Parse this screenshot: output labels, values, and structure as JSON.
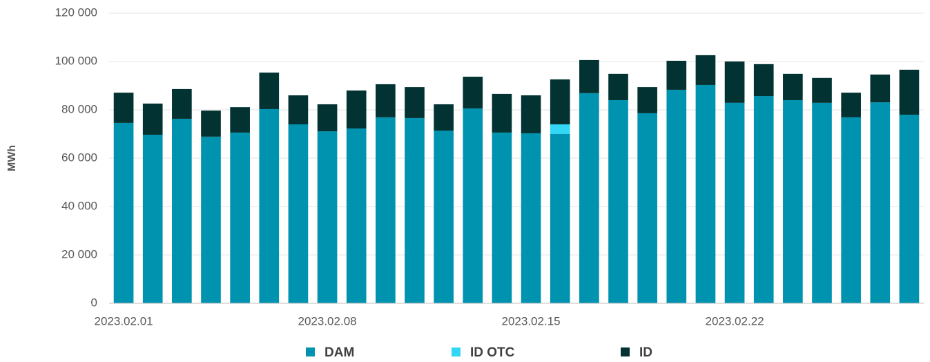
{
  "chart_data": {
    "type": "stacked_bar",
    "y_label": "MWh",
    "categories": [
      "2023.02.01",
      null,
      null,
      null,
      null,
      null,
      null,
      "2023.02.08",
      null,
      null,
      null,
      null,
      null,
      null,
      "2023.02.15",
      null,
      null,
      null,
      null,
      null,
      null,
      "2023.02.22",
      null,
      null,
      null,
      null,
      null,
      null
    ],
    "series": [
      {
        "name": "DAM",
        "color": "#0093b0",
        "values": [
          74600,
          69700,
          76300,
          68900,
          70600,
          80300,
          74000,
          71100,
          72300,
          76900,
          76600,
          71400,
          80600,
          70600,
          70300,
          70000,
          86900,
          84000,
          78600,
          88300,
          90300,
          82900,
          85700,
          84000,
          82900,
          76900,
          83100,
          78000
        ]
      },
      {
        "name": "ID OTC",
        "color": "#33d6f5",
        "values": [
          0,
          0,
          0,
          0,
          0,
          0,
          0,
          0,
          0,
          0,
          0,
          0,
          0,
          0,
          0,
          4000,
          0,
          0,
          0,
          0,
          0,
          0,
          0,
          0,
          0,
          0,
          0,
          0
        ]
      },
      {
        "name": "ID",
        "color": "#033232",
        "values": [
          12500,
          12900,
          12300,
          10800,
          10500,
          15100,
          12000,
          11200,
          15700,
          13700,
          12800,
          10900,
          13100,
          16000,
          15700,
          18600,
          13700,
          10900,
          10800,
          12000,
          12300,
          17100,
          13200,
          10900,
          10300,
          10200,
          11500,
          18600
        ]
      }
    ],
    "ylim": [
      0,
      120000
    ],
    "yticks": [
      0,
      {
        "value": 20000,
        "label": "20 000"
      },
      {
        "value": 40000,
        "label": "40 000"
      },
      {
        "value": 60000,
        "label": "60 000"
      },
      {
        "value": 80000,
        "label": "80 000"
      },
      {
        "value": 100000,
        "label": "100 000"
      },
      {
        "value": 120000,
        "label": "120 000"
      }
    ],
    "grid": true,
    "legend": "bottom"
  }
}
